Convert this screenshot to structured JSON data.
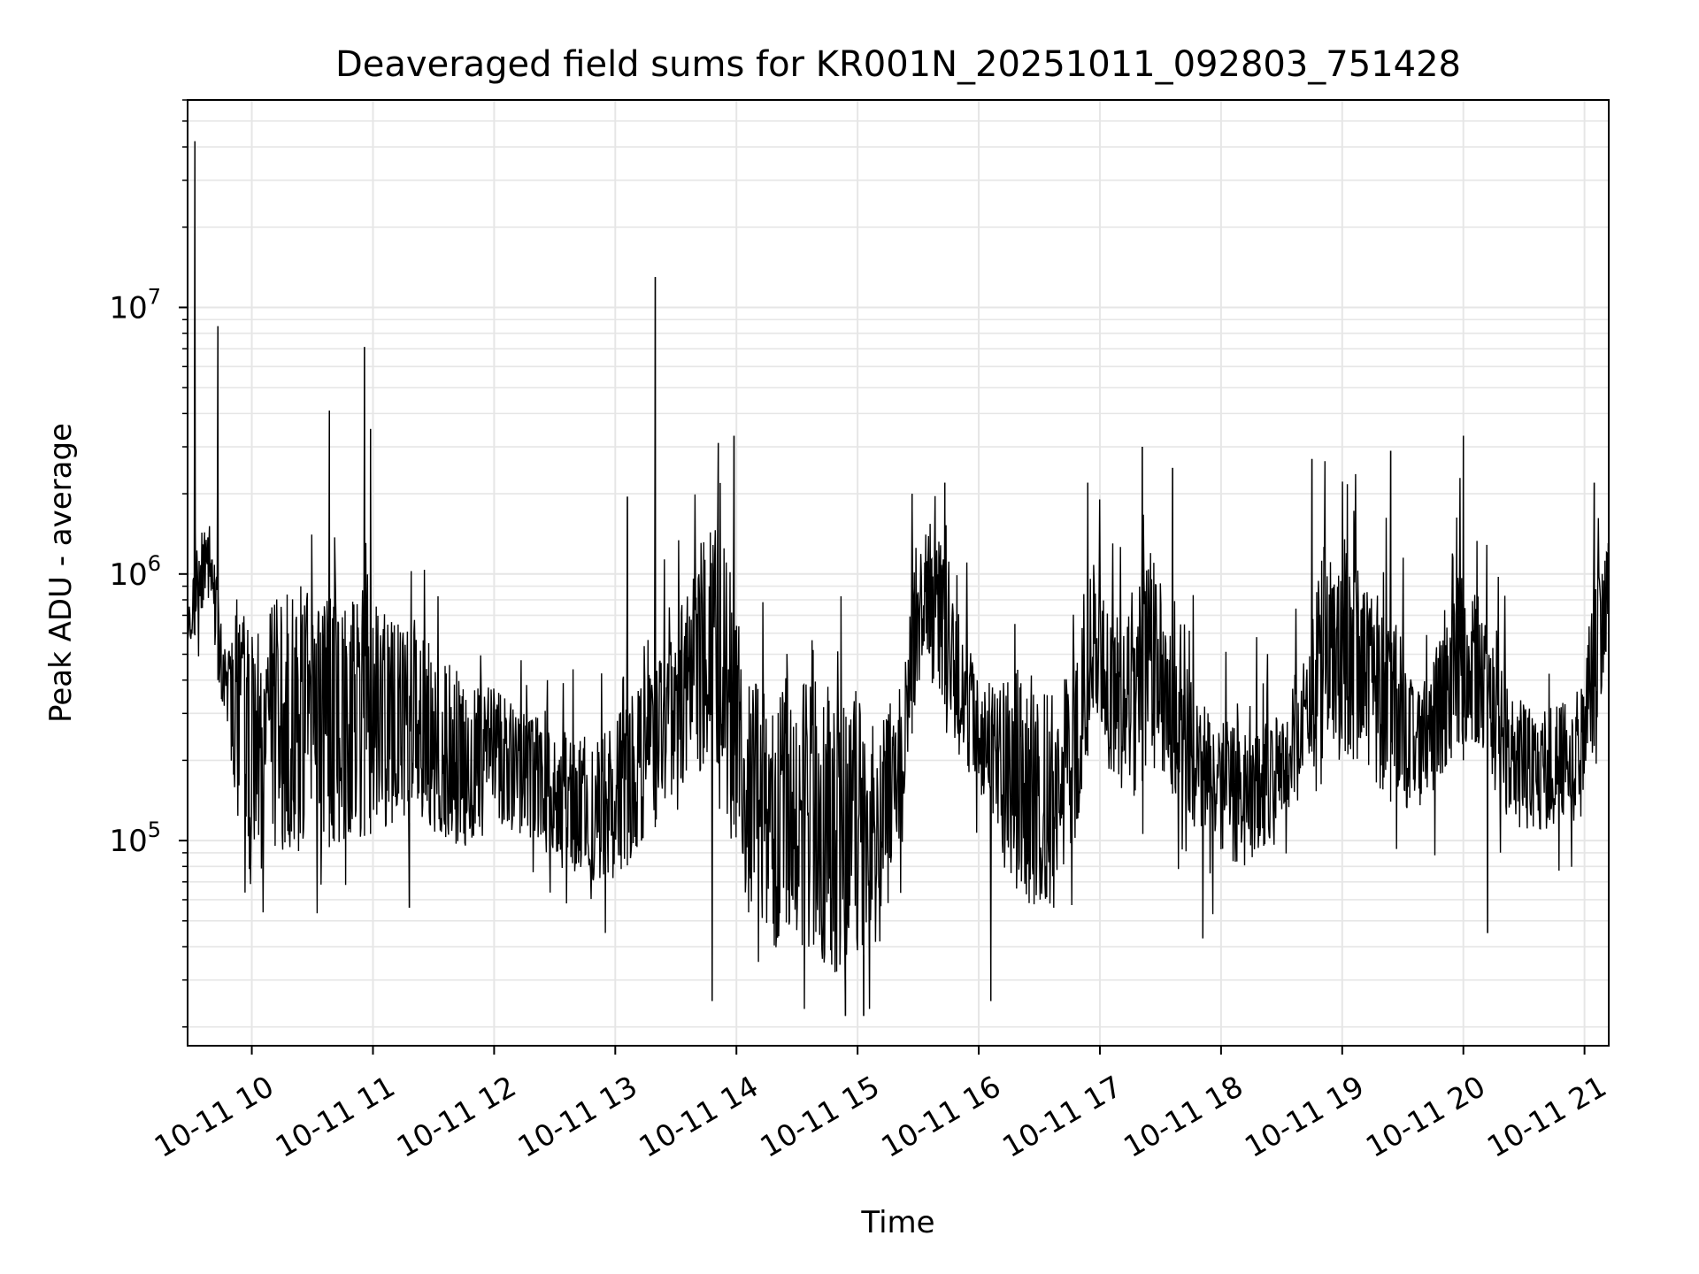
{
  "chart_data": {
    "type": "line",
    "title": "Deaveraged field sums for KR001N_20251011_092803_751428",
    "xlabel": "Time",
    "ylabel": "Peak ADU - average",
    "yscale": "log",
    "ylim": [
      17000,
      60000000
    ],
    "xlim_hours": [
      9.47,
      21.2
    ],
    "grid": true,
    "x_ticks": [
      {
        "hour": 10,
        "label": "10-11 10"
      },
      {
        "hour": 11,
        "label": "10-11 11"
      },
      {
        "hour": 12,
        "label": "10-11 12"
      },
      {
        "hour": 13,
        "label": "10-11 13"
      },
      {
        "hour": 14,
        "label": "10-11 14"
      },
      {
        "hour": 15,
        "label": "10-11 15"
      },
      {
        "hour": 16,
        "label": "10-11 16"
      },
      {
        "hour": 17,
        "label": "10-11 17"
      },
      {
        "hour": 18,
        "label": "10-11 18"
      },
      {
        "hour": 19,
        "label": "10-11 19"
      },
      {
        "hour": 20,
        "label": "10-11 20"
      },
      {
        "hour": 21,
        "label": "10-11 21"
      }
    ],
    "y_ticks": [
      {
        "value": 100000,
        "base": "10",
        "exp": "5"
      },
      {
        "value": 1000000,
        "base": "10",
        "exp": "6"
      },
      {
        "value": 10000000,
        "base": "10",
        "exp": "7"
      }
    ],
    "line_color": "#000000",
    "grid_color": "#e6e6e6",
    "series": [
      {
        "name": "deaveraged field sum",
        "envelope": {
          "hours": [
            9.47,
            9.55,
            9.65,
            9.72,
            9.8,
            9.9,
            10.2,
            10.5,
            10.8,
            11.1,
            11.4,
            11.7,
            12.0,
            12.3,
            12.6,
            12.9,
            13.2,
            13.5,
            13.7,
            13.9,
            14.1,
            14.3,
            14.6,
            14.9,
            15.1,
            15.35,
            15.5,
            15.7,
            15.85,
            16.0,
            16.3,
            16.6,
            16.8,
            16.95,
            17.1,
            17.3,
            17.4,
            17.6,
            17.9,
            18.2,
            18.5,
            18.7,
            18.85,
            19.1,
            19.4,
            19.7,
            19.95,
            20.15,
            20.4,
            20.7,
            20.95,
            21.1,
            21.2
          ],
          "low": [
            350000,
            700000,
            800000,
            400000,
            250000,
            100000,
            90000,
            90000,
            100000,
            110000,
            120000,
            90000,
            110000,
            100000,
            75000,
            65000,
            90000,
            150000,
            180000,
            200000,
            50000,
            40000,
            35000,
            30000,
            40000,
            100000,
            400000,
            350000,
            200000,
            150000,
            60000,
            55000,
            100000,
            300000,
            150000,
            140000,
            200000,
            150000,
            90000,
            80000,
            110000,
            200000,
            250000,
            200000,
            140000,
            120000,
            200000,
            200000,
            110000,
            110000,
            120000,
            250000,
            600000
          ],
          "high": [
            700000,
            1400000,
            1600000,
            900000,
            500000,
            700000,
            800000,
            900000,
            800000,
            750000,
            600000,
            400000,
            380000,
            300000,
            260000,
            250000,
            400000,
            600000,
            1400000,
            1500000,
            400000,
            400000,
            420000,
            380000,
            300000,
            300000,
            1600000,
            1500000,
            700000,
            400000,
            400000,
            350000,
            500000,
            1100000,
            700000,
            900000,
            1500000,
            600000,
            300000,
            250000,
            300000,
            500000,
            1300000,
            1200000,
            700000,
            400000,
            1200000,
            800000,
            350000,
            320000,
            350000,
            1000000,
            1400000
          ]
        },
        "spikes": [
          {
            "hour": 9.53,
            "value": 42000000
          },
          {
            "hour": 9.72,
            "value": 8500000
          },
          {
            "hour": 10.64,
            "value": 4100000
          },
          {
            "hour": 10.93,
            "value": 7100000
          },
          {
            "hour": 10.98,
            "value": 3500000
          },
          {
            "hour": 13.33,
            "value": 13000000
          },
          {
            "hour": 13.1,
            "value": 1950000
          },
          {
            "hour": 13.85,
            "value": 3100000
          },
          {
            "hour": 13.98,
            "value": 3300000
          },
          {
            "hour": 15.45,
            "value": 2000000
          },
          {
            "hour": 15.72,
            "value": 2200000
          },
          {
            "hour": 16.9,
            "value": 2200000
          },
          {
            "hour": 17.35,
            "value": 3000000
          },
          {
            "hour": 17.6,
            "value": 2500000
          },
          {
            "hour": 18.75,
            "value": 2700000
          },
          {
            "hour": 19.4,
            "value": 2900000
          },
          {
            "hour": 20.0,
            "value": 3300000
          },
          {
            "hour": 21.08,
            "value": 2200000
          },
          {
            "hour": 13.8,
            "value": 25000
          },
          {
            "hour": 14.9,
            "value": 22000
          },
          {
            "hour": 15.05,
            "value": 22000
          },
          {
            "hour": 16.1,
            "value": 25000
          },
          {
            "hour": 11.3,
            "value": 56000
          },
          {
            "hour": 17.85,
            "value": 43000
          },
          {
            "hour": 20.2,
            "value": 45000
          }
        ]
      }
    ]
  }
}
